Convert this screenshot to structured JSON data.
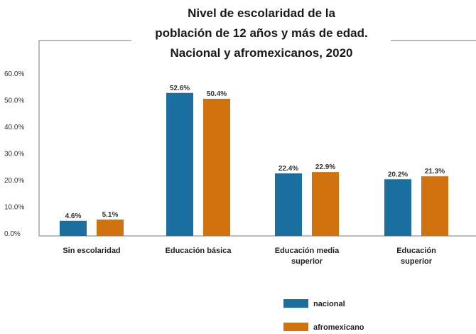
{
  "chart_data": {
    "type": "bar",
    "title_lines": [
      "Nivel de escolaridad de la",
      "población de 12 años y más de edad.",
      "Nacional y afromexicanos, 2020"
    ],
    "categories": [
      [
        "Sin escolaridad"
      ],
      [
        "Educación básica"
      ],
      [
        "Educación media",
        "superior"
      ],
      [
        "Educación",
        "superior"
      ]
    ],
    "series": [
      {
        "name": "nacional",
        "color": "#1a6fa0",
        "values": [
          4.6,
          52.6,
          22.4,
          20.2
        ],
        "labels": [
          "4.6%",
          "52.6%",
          "22.4%",
          "20.2%"
        ]
      },
      {
        "name": "afromexicano",
        "color": "#d0730f",
        "values": [
          5.1,
          50.4,
          22.9,
          21.3
        ],
        "labels": [
          "5.1%",
          "50.4%",
          "22.9%",
          "21.3%"
        ]
      }
    ],
    "yticks": [
      "0.0%",
      "10.0%",
      "20.0%",
      "30.0%",
      "40.0%",
      "50.0%",
      "60.0%"
    ],
    "ylim": [
      0,
      60
    ],
    "legend_position": "bottom-right",
    "grid": false
  }
}
